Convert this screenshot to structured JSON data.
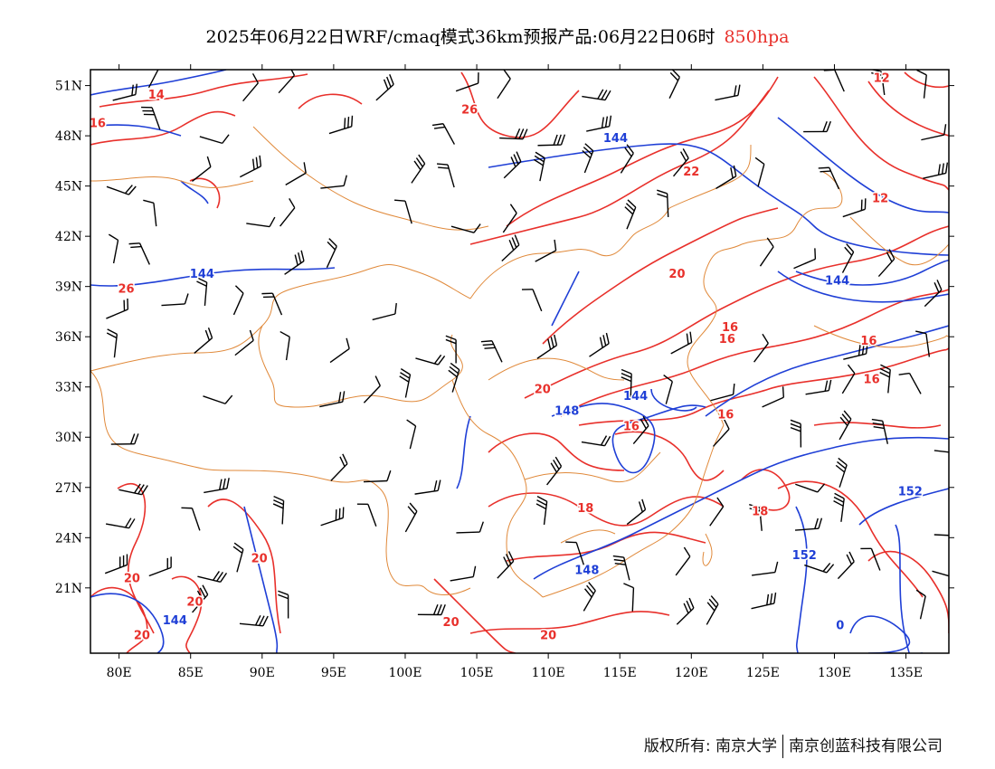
{
  "title": {
    "main": "2025年06月22日WRF/cmaq模式36km预报产品:06月22日06时",
    "level": "850hpa"
  },
  "colors": {
    "temperature": "#e8302b",
    "height": "#1f3fd6",
    "border": "#e0893a",
    "wind": "#000000"
  },
  "axes": {
    "lon_ticks": [
      "80E",
      "85E",
      "90E",
      "95E",
      "100E",
      "105E",
      "110E",
      "115E",
      "120E",
      "125E",
      "130E",
      "135E"
    ],
    "lat_ticks": [
      "51N",
      "48N",
      "45N",
      "42N",
      "39N",
      "36N",
      "33N",
      "30N",
      "27N",
      "24N",
      "21N"
    ]
  },
  "contour_labels": {
    "temperature": [
      {
        "text": "14",
        "lon": 82.6,
        "lat": 50.5
      },
      {
        "text": "16",
        "lon": 78.5,
        "lat": 48.8
      },
      {
        "text": "26",
        "lon": 104.5,
        "lat": 49.6
      },
      {
        "text": "22",
        "lon": 120,
        "lat": 45.9
      },
      {
        "text": "12",
        "lon": 133.3,
        "lat": 51.5
      },
      {
        "text": "12",
        "lon": 133.2,
        "lat": 44.3
      },
      {
        "text": "20",
        "lon": 119,
        "lat": 39.8
      },
      {
        "text": "26",
        "lon": 80.5,
        "lat": 38.9
      },
      {
        "text": "16",
        "lon": 122.7,
        "lat": 36.6
      },
      {
        "text": "16",
        "lon": 122.5,
        "lat": 35.9
      },
      {
        "text": "16",
        "lon": 132.4,
        "lat": 35.8
      },
      {
        "text": "16",
        "lon": 132.6,
        "lat": 33.5
      },
      {
        "text": "20",
        "lon": 109.6,
        "lat": 32.9
      },
      {
        "text": "16",
        "lon": 122.4,
        "lat": 31.4
      },
      {
        "text": "16",
        "lon": 115.8,
        "lat": 30.7
      },
      {
        "text": "18",
        "lon": 112.6,
        "lat": 25.8
      },
      {
        "text": "18",
        "lon": 124.8,
        "lat": 25.6
      },
      {
        "text": "20",
        "lon": 89.8,
        "lat": 22.8
      },
      {
        "text": "20",
        "lon": 85.3,
        "lat": 20.2
      },
      {
        "text": "20",
        "lon": 80.9,
        "lat": 21.6
      },
      {
        "text": "20",
        "lon": 81.6,
        "lat": 18.2
      },
      {
        "text": "20",
        "lon": 103.2,
        "lat": 19.0
      },
      {
        "text": "20",
        "lon": 110.0,
        "lat": 18.2
      }
    ],
    "height": [
      {
        "text": "144",
        "lon": 114.7,
        "lat": 47.9
      },
      {
        "text": "144",
        "lon": 85.8,
        "lat": 39.8
      },
      {
        "text": "144",
        "lon": 130.2,
        "lat": 39.4
      },
      {
        "text": "148",
        "lon": 111.3,
        "lat": 31.6
      },
      {
        "text": "144",
        "lon": 116.1,
        "lat": 32.5
      },
      {
        "text": "148",
        "lon": 112.7,
        "lat": 22.1
      },
      {
        "text": "152",
        "lon": 135.3,
        "lat": 26.8
      },
      {
        "text": "152",
        "lon": 127.9,
        "lat": 23.0
      },
      {
        "text": "144",
        "lon": 83.9,
        "lat": 19.1
      },
      {
        "text": "0",
        "lon": 130.4,
        "lat": 18.8
      }
    ]
  },
  "footer": {
    "left": "版权所有: 南京大学",
    "right": "南京创蓝科技有限公司"
  }
}
